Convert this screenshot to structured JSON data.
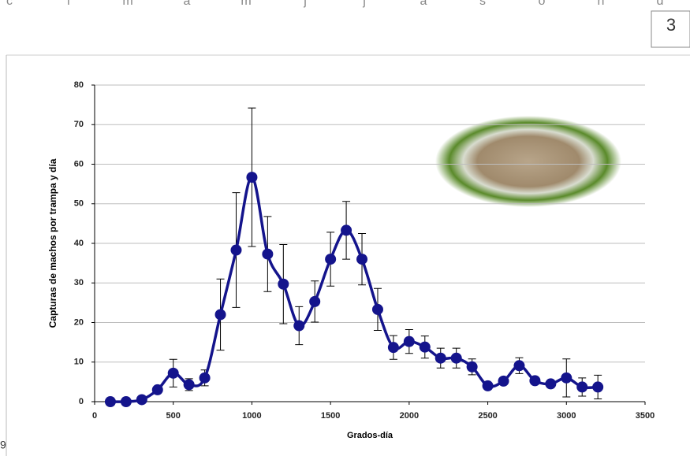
{
  "header_letters": [
    "c",
    "f",
    "m",
    "a",
    "m",
    "j",
    "j",
    "a",
    "s",
    "o",
    "n",
    "d"
  ],
  "page_number": "3",
  "footer_fragment": "9",
  "chart_data": {
    "type": "line",
    "y_label": "Capturas de machos por trampa y día",
    "x_label": "Grados-día",
    "x": [
      100,
      200,
      300,
      400,
      500,
      600,
      700,
      800,
      900,
      1000,
      1100,
      1200,
      1300,
      1400,
      1500,
      1600,
      1700,
      1800,
      1900,
      2000,
      2100,
      2200,
      2300,
      2400,
      2500,
      2600,
      2700,
      2800,
      2900,
      3000,
      3100,
      3200
    ],
    "values": [
      0,
      0,
      0.5,
      3,
      7.2,
      4.3,
      6,
      22,
      38.3,
      56.7,
      37.3,
      29.7,
      19.2,
      25.3,
      36,
      43.3,
      36,
      23.3,
      13.7,
      15.2,
      13.8,
      11,
      11,
      8.8,
      4,
      5.2,
      9.1,
      5.3,
      4.5,
      6,
      3.7,
      3.7
    ],
    "errors": [
      0,
      0,
      0,
      0,
      3.5,
      1.5,
      2,
      9,
      14.5,
      17.5,
      9.5,
      10,
      4.8,
      5.2,
      6.8,
      7.3,
      6.5,
      5.3,
      3,
      3,
      2.8,
      2.5,
      2.5,
      2,
      0.5,
      0.8,
      2,
      0,
      0,
      4.8,
      2.3,
      3
    ],
    "color": "#14148c",
    "xlim": [
      0,
      3500
    ],
    "xticks": [
      0,
      500,
      1000,
      1500,
      2000,
      2500,
      3000,
      3500
    ],
    "ylim": [
      0,
      80
    ],
    "yticks": [
      0,
      10,
      20,
      30,
      40,
      50,
      60,
      70,
      80
    ],
    "grid": true
  }
}
